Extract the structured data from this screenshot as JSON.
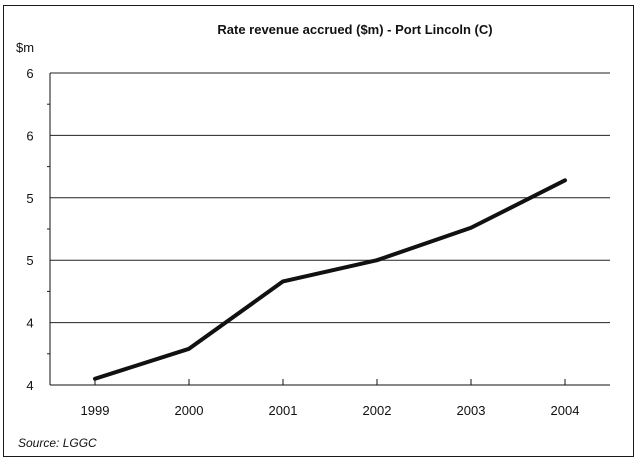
{
  "chart_data": {
    "type": "line",
    "title": "Rate revenue accrued ($m) - Port Lincoln (C)",
    "ylabel": "$m",
    "xlabel": "",
    "categories": [
      "1999",
      "2000",
      "2001",
      "2002",
      "2003",
      "2004"
    ],
    "ytick_labels": [
      "4",
      "4",
      "5",
      "5",
      "6",
      "6"
    ],
    "ylim": [
      4,
      6.5
    ],
    "series": [
      {
        "values": [
          4.05,
          4.29,
          4.83,
          5.0,
          5.26,
          5.64
        ]
      }
    ],
    "grid": true,
    "line_color": "#111111",
    "source": "Source: LGGC"
  }
}
